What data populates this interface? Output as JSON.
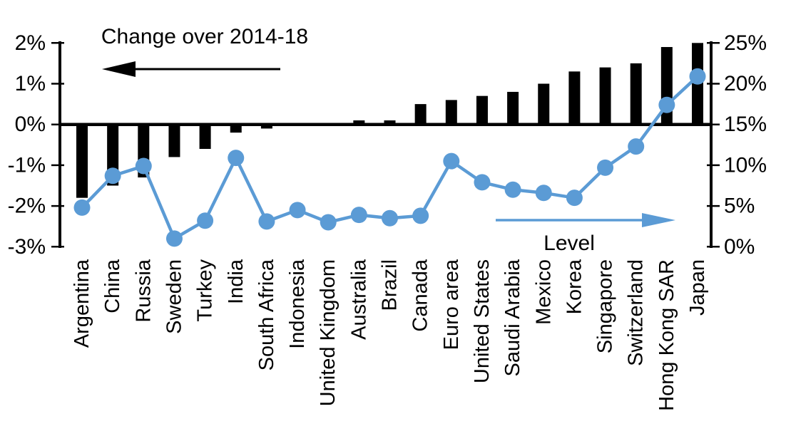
{
  "chart_data": {
    "type": "bar",
    "title": "",
    "categories": [
      "Argentina",
      "China",
      "Russia",
      "Sweden",
      "Turkey",
      "India",
      "South Africa",
      "Indonesia",
      "United Kingdom",
      "Australia",
      "Brazil",
      "Canada",
      "Euro area",
      "United States",
      "Saudi Arabia",
      "Mexico",
      "Korea",
      "Singapore",
      "Switzerland",
      "Hong Kong SAR",
      "Japan"
    ],
    "series": [
      {
        "name": "Change over 2014-18",
        "type": "bar",
        "axis": "left",
        "color": "#000000",
        "values": [
          -1.8,
          -1.5,
          -1.3,
          -0.8,
          -0.6,
          -0.2,
          -0.1,
          0,
          0,
          0.1,
          0.1,
          0.5,
          0.6,
          0.7,
          0.8,
          1.0,
          1.3,
          1.4,
          1.5,
          1.9,
          2.0
        ]
      },
      {
        "name": "Level",
        "type": "line",
        "axis": "right",
        "color": "#5b9bd5",
        "values": [
          4.8,
          8.7,
          9.9,
          1.0,
          3.2,
          10.9,
          3.1,
          4.5,
          3.0,
          3.9,
          3.5,
          3.8,
          10.5,
          7.9,
          7.0,
          6.6,
          6.0,
          9.7,
          12.3,
          17.4,
          20.9
        ]
      }
    ],
    "left_axis": {
      "min": -3,
      "max": 2,
      "tick_values": [
        2,
        1,
        0,
        -1,
        -2,
        -3
      ],
      "tick_labels": [
        "2%",
        "1%",
        "0%",
        "-1%",
        "-2%",
        "-3%"
      ]
    },
    "right_axis": {
      "min": 0,
      "max": 25,
      "tick_values": [
        25,
        20,
        15,
        10,
        5,
        0
      ],
      "tick_labels": [
        "25%",
        "20%",
        "15%",
        "10%",
        "5%",
        "0%"
      ]
    },
    "annotations": {
      "change_label": "Change over 2014-18",
      "level_label": "Level",
      "change_arrow_direction": "left",
      "level_arrow_direction": "right"
    },
    "grid": "off",
    "legend_position": "none"
  },
  "colors": {
    "bar": "#000000",
    "line": "#5b9bd5",
    "axis": "#000000",
    "background": "#ffffff"
  }
}
